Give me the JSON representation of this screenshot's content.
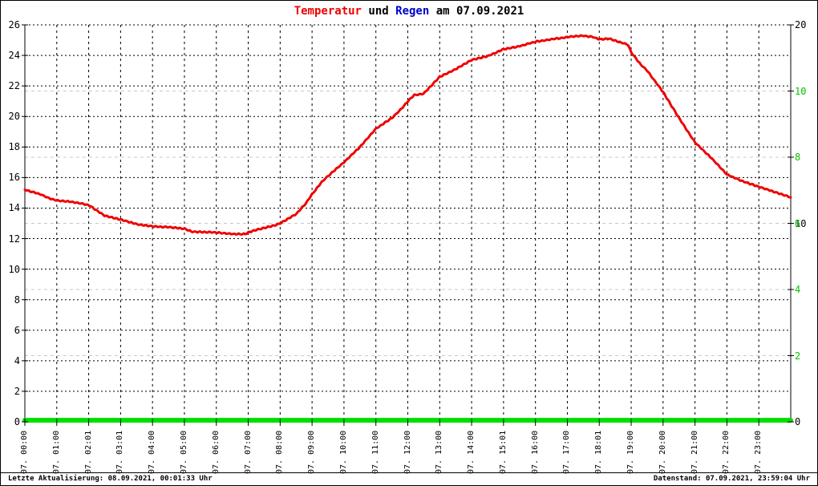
{
  "title": {
    "temp_word": "Temperatur",
    "connector": " und ",
    "rain_word": "Regen",
    "date_part": " am 07.09.2021",
    "temp_color": "#ee0000",
    "rain_color": "#0000cc",
    "text_color": "#000000"
  },
  "status_bar": {
    "left": "Letzte Aktualisierung: 08.09.2021, 00:01:33 Uhr",
    "right": "Datenstand: 07.09.2021, 23:59:04 Uhr"
  },
  "chart_data": {
    "type": "line",
    "title": "Temperatur und Regen am 07.09.2021",
    "x_axis": {
      "unit": "hour",
      "range": [
        0,
        24
      ],
      "tick_hours": [
        0,
        1,
        2,
        3,
        4,
        5,
        6,
        7,
        8,
        9,
        10,
        11,
        12,
        13,
        14,
        15,
        16,
        17,
        18,
        19,
        20,
        21,
        22,
        23
      ],
      "labels": [
        "07. 00:00",
        "07. 01:00",
        "07. 02:01",
        "07. 03:01",
        "07. 04:00",
        "07. 05:00",
        "07. 06:00",
        "07. 07:00",
        "07. 08:00",
        "07. 09:00",
        "07. 10:00",
        "07. 11:00",
        "07. 12:00",
        "07. 13:00",
        "07. 14:00",
        "07. 15:01",
        "07. 16:00",
        "07. 17:00",
        "07. 18:01",
        "07. 19:00",
        "07. 20:00",
        "07. 21:00",
        "07. 22:00",
        "07. 23:00"
      ]
    },
    "y_left": {
      "name": "Temperatur",
      "range": [
        0,
        26
      ],
      "ticks": [
        0,
        2,
        4,
        6,
        8,
        10,
        12,
        14,
        16,
        18,
        20,
        22,
        24,
        26
      ],
      "color": "#000000",
      "grid": "dotted-black"
    },
    "y_right_black": {
      "range": [
        0,
        20
      ],
      "ticks": [
        0,
        10,
        20
      ],
      "color": "#000000"
    },
    "y_right_green": {
      "name": "Regen",
      "range": [
        0,
        12
      ],
      "ticks": [
        2,
        4,
        6,
        8,
        10
      ],
      "color": "#00c400",
      "grid": "dashed-gray",
      "grid_color": "#c8c8c8"
    },
    "legend_position": "none",
    "grid_on": true,
    "series": [
      {
        "name": "Temperatur",
        "axis": "y_left",
        "color": "#ee0000",
        "width": 3,
        "points": [
          [
            0,
            15.2
          ],
          [
            0.25,
            15.05
          ],
          [
            0.5,
            14.9
          ],
          [
            0.75,
            14.65
          ],
          [
            1,
            14.5
          ],
          [
            1.5,
            14.4
          ],
          [
            2,
            14.2
          ],
          [
            2.5,
            13.5
          ],
          [
            3,
            13.25
          ],
          [
            3.5,
            12.95
          ],
          [
            4,
            12.8
          ],
          [
            4.5,
            12.75
          ],
          [
            5,
            12.65
          ],
          [
            5.25,
            12.45
          ],
          [
            6,
            12.4
          ],
          [
            6.5,
            12.3
          ],
          [
            6.9,
            12.3
          ],
          [
            7,
            12.4
          ],
          [
            7.3,
            12.6
          ],
          [
            7.8,
            12.85
          ],
          [
            8,
            13.0
          ],
          [
            8.5,
            13.6
          ],
          [
            8.8,
            14.3
          ],
          [
            9,
            14.9
          ],
          [
            9.3,
            15.7
          ],
          [
            9.5,
            16.1
          ],
          [
            10,
            17.0
          ],
          [
            10.5,
            18.0
          ],
          [
            11,
            19.2
          ],
          [
            11.5,
            19.9
          ],
          [
            11.8,
            20.5
          ],
          [
            12,
            21.0
          ],
          [
            12.2,
            21.4
          ],
          [
            12.5,
            21.5
          ],
          [
            13,
            22.6
          ],
          [
            13.5,
            23.1
          ],
          [
            14,
            23.7
          ],
          [
            14.5,
            23.95
          ],
          [
            15,
            24.4
          ],
          [
            15.5,
            24.6
          ],
          [
            16,
            24.9
          ],
          [
            16.5,
            25.05
          ],
          [
            17,
            25.2
          ],
          [
            17.5,
            25.3
          ],
          [
            17.8,
            25.2
          ],
          [
            18,
            25.05
          ],
          [
            18.3,
            25.1
          ],
          [
            18.6,
            24.9
          ],
          [
            18.9,
            24.7
          ],
          [
            19,
            24.2
          ],
          [
            19.3,
            23.4
          ],
          [
            19.5,
            23.0
          ],
          [
            20,
            21.6
          ],
          [
            20.5,
            19.9
          ],
          [
            21,
            18.3
          ],
          [
            21.5,
            17.3
          ],
          [
            22,
            16.2
          ],
          [
            22.5,
            15.75
          ],
          [
            23,
            15.4
          ],
          [
            23.5,
            15.05
          ],
          [
            24,
            14.7
          ]
        ]
      },
      {
        "name": "Regen",
        "axis": "y_right_green",
        "color": "#00e000",
        "width": 6,
        "points": [
          [
            0,
            0
          ],
          [
            24,
            0
          ]
        ]
      }
    ]
  }
}
